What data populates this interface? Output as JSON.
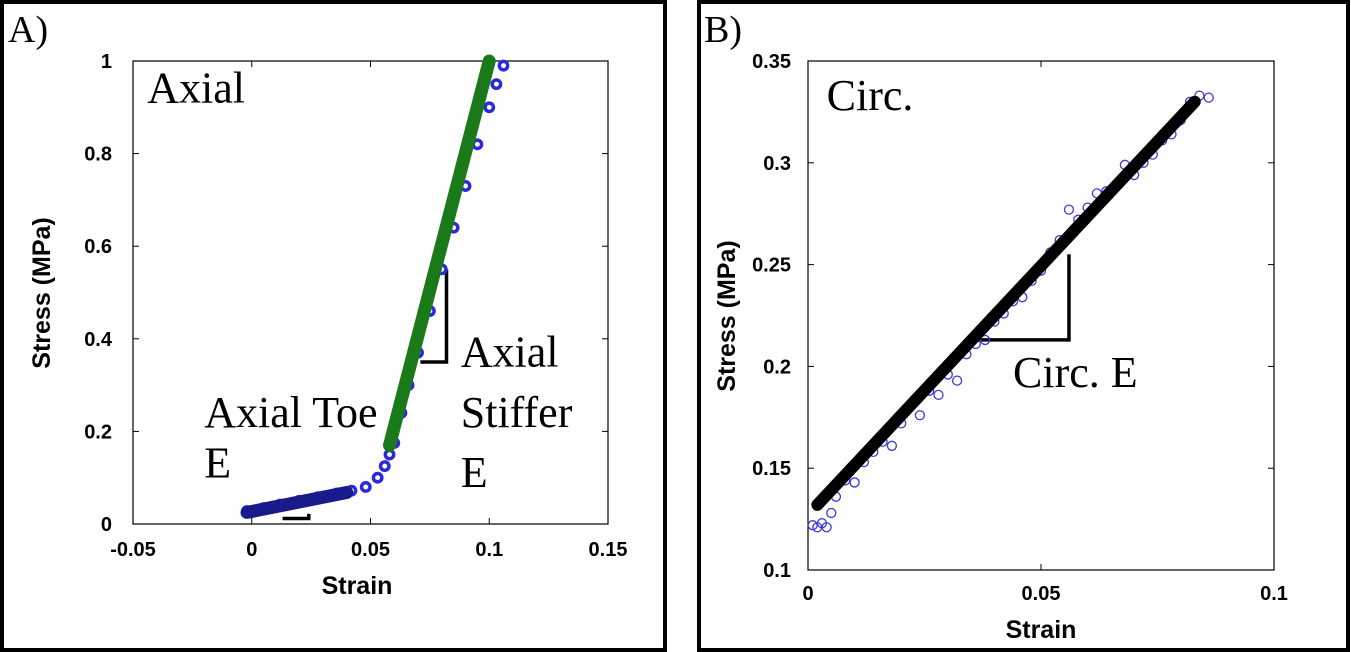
{
  "chart_data": [
    {
      "type": "scatter",
      "panel_label": "A)",
      "xlabel": "Strain",
      "ylabel": "Stress (MPa)",
      "xlim": [
        -0.05,
        0.15
      ],
      "ylim": [
        0,
        1
      ],
      "xticks": [
        "-0.05",
        "0",
        "0.05",
        "0.1",
        "0.15"
      ],
      "yticks": [
        "0",
        "0.2",
        "0.4",
        "0.6",
        "0.8",
        "1"
      ],
      "xtick_values": [
        -0.05,
        0,
        0.05,
        0.1,
        0.15
      ],
      "ytick_values": [
        0,
        0.2,
        0.4,
        0.6,
        0.8,
        1
      ],
      "grid": false,
      "annotations": [
        {
          "text": "Axial",
          "x": -0.044,
          "y": 0.91
        },
        {
          "text": "Axial Toe",
          "x": -0.02,
          "y": 0.21
        },
        {
          "text": "E",
          "x": -0.02,
          "y": 0.1
        },
        {
          "text": "Axial",
          "x": 0.088,
          "y": 0.34
        },
        {
          "text": "Stiffer",
          "x": 0.088,
          "y": 0.21
        },
        {
          "text": "E",
          "x": 0.088,
          "y": 0.08
        }
      ],
      "series": [
        {
          "style": "markers",
          "color": "#2a2adc",
          "x": [
            -0.002,
            0.005,
            0.012,
            0.02,
            0.028,
            0.036,
            0.042,
            0.048,
            0.053,
            0.056,
            0.058,
            0.06,
            0.063,
            0.066,
            0.07,
            0.075,
            0.08,
            0.085,
            0.09,
            0.095,
            0.1,
            0.103,
            0.106
          ],
          "y": [
            0.028,
            0.034,
            0.042,
            0.05,
            0.058,
            0.066,
            0.072,
            0.08,
            0.1,
            0.125,
            0.15,
            0.175,
            0.24,
            0.3,
            0.37,
            0.46,
            0.55,
            0.64,
            0.73,
            0.82,
            0.9,
            0.95,
            0.99
          ]
        },
        {
          "style": "line",
          "color": "#1a1a8c",
          "x": [
            -0.002,
            0.04
          ],
          "y": [
            0.025,
            0.068
          ]
        },
        {
          "style": "line",
          "color": "#1a7a1a",
          "x": [
            0.058,
            0.1
          ],
          "y": [
            0.17,
            1.0
          ]
        }
      ],
      "slope_markers": [
        {
          "x": [
            0.013,
            0.024,
            0.024
          ],
          "y": [
            0.012,
            0.012,
            0.022
          ]
        },
        {
          "x": [
            0.071,
            0.082,
            0.082
          ],
          "y": [
            0.35,
            0.35,
            0.55
          ]
        }
      ]
    },
    {
      "type": "scatter",
      "panel_label": "B)",
      "xlabel": "Strain",
      "ylabel": "Stress (MPa)",
      "xlim": [
        0,
        0.1
      ],
      "ylim": [
        0.1,
        0.35
      ],
      "xticks": [
        "0",
        "0.05",
        "0.1"
      ],
      "yticks": [
        "0.1",
        "0.15",
        "0.2",
        "0.25",
        "0.3",
        "0.35"
      ],
      "xtick_values": [
        0,
        0.05,
        0.1
      ],
      "ytick_values": [
        0.1,
        0.15,
        0.2,
        0.25,
        0.3,
        0.35
      ],
      "grid": false,
      "annotations": [
        {
          "text": "Circ.",
          "x": 0.004,
          "y": 0.326
        },
        {
          "text": "Circ. E",
          "x": 0.044,
          "y": 0.19
        }
      ],
      "series": [
        {
          "style": "markers",
          "color": "#3b3bdd",
          "x": [
            0.001,
            0.002,
            0.003,
            0.004,
            0.005,
            0.006,
            0.008,
            0.01,
            0.012,
            0.014,
            0.016,
            0.018,
            0.02,
            0.022,
            0.024,
            0.026,
            0.028,
            0.03,
            0.032,
            0.034,
            0.036,
            0.038,
            0.04,
            0.042,
            0.044,
            0.046,
            0.048,
            0.05,
            0.052,
            0.054,
            0.056,
            0.058,
            0.06,
            0.062,
            0.064,
            0.066,
            0.068,
            0.07,
            0.072,
            0.074,
            0.076,
            0.078,
            0.08,
            0.082,
            0.084,
            0.086
          ],
          "y": [
            0.122,
            0.121,
            0.123,
            0.121,
            0.128,
            0.136,
            0.144,
            0.143,
            0.153,
            0.158,
            0.163,
            0.161,
            0.172,
            0.181,
            0.176,
            0.188,
            0.186,
            0.196,
            0.193,
            0.206,
            0.211,
            0.213,
            0.222,
            0.226,
            0.232,
            0.234,
            0.242,
            0.247,
            0.256,
            0.262,
            0.277,
            0.272,
            0.278,
            0.285,
            0.286,
            0.289,
            0.299,
            0.294,
            0.3,
            0.304,
            0.311,
            0.314,
            0.321,
            0.33,
            0.333,
            0.332
          ]
        },
        {
          "style": "line",
          "color": "#000000",
          "x": [
            0.002,
            0.083
          ],
          "y": [
            0.132,
            0.33
          ]
        }
      ],
      "slope_markers": [
        {
          "x": [
            0.036,
            0.056,
            0.056
          ],
          "y": [
            0.213,
            0.213,
            0.255
          ]
        }
      ]
    }
  ]
}
